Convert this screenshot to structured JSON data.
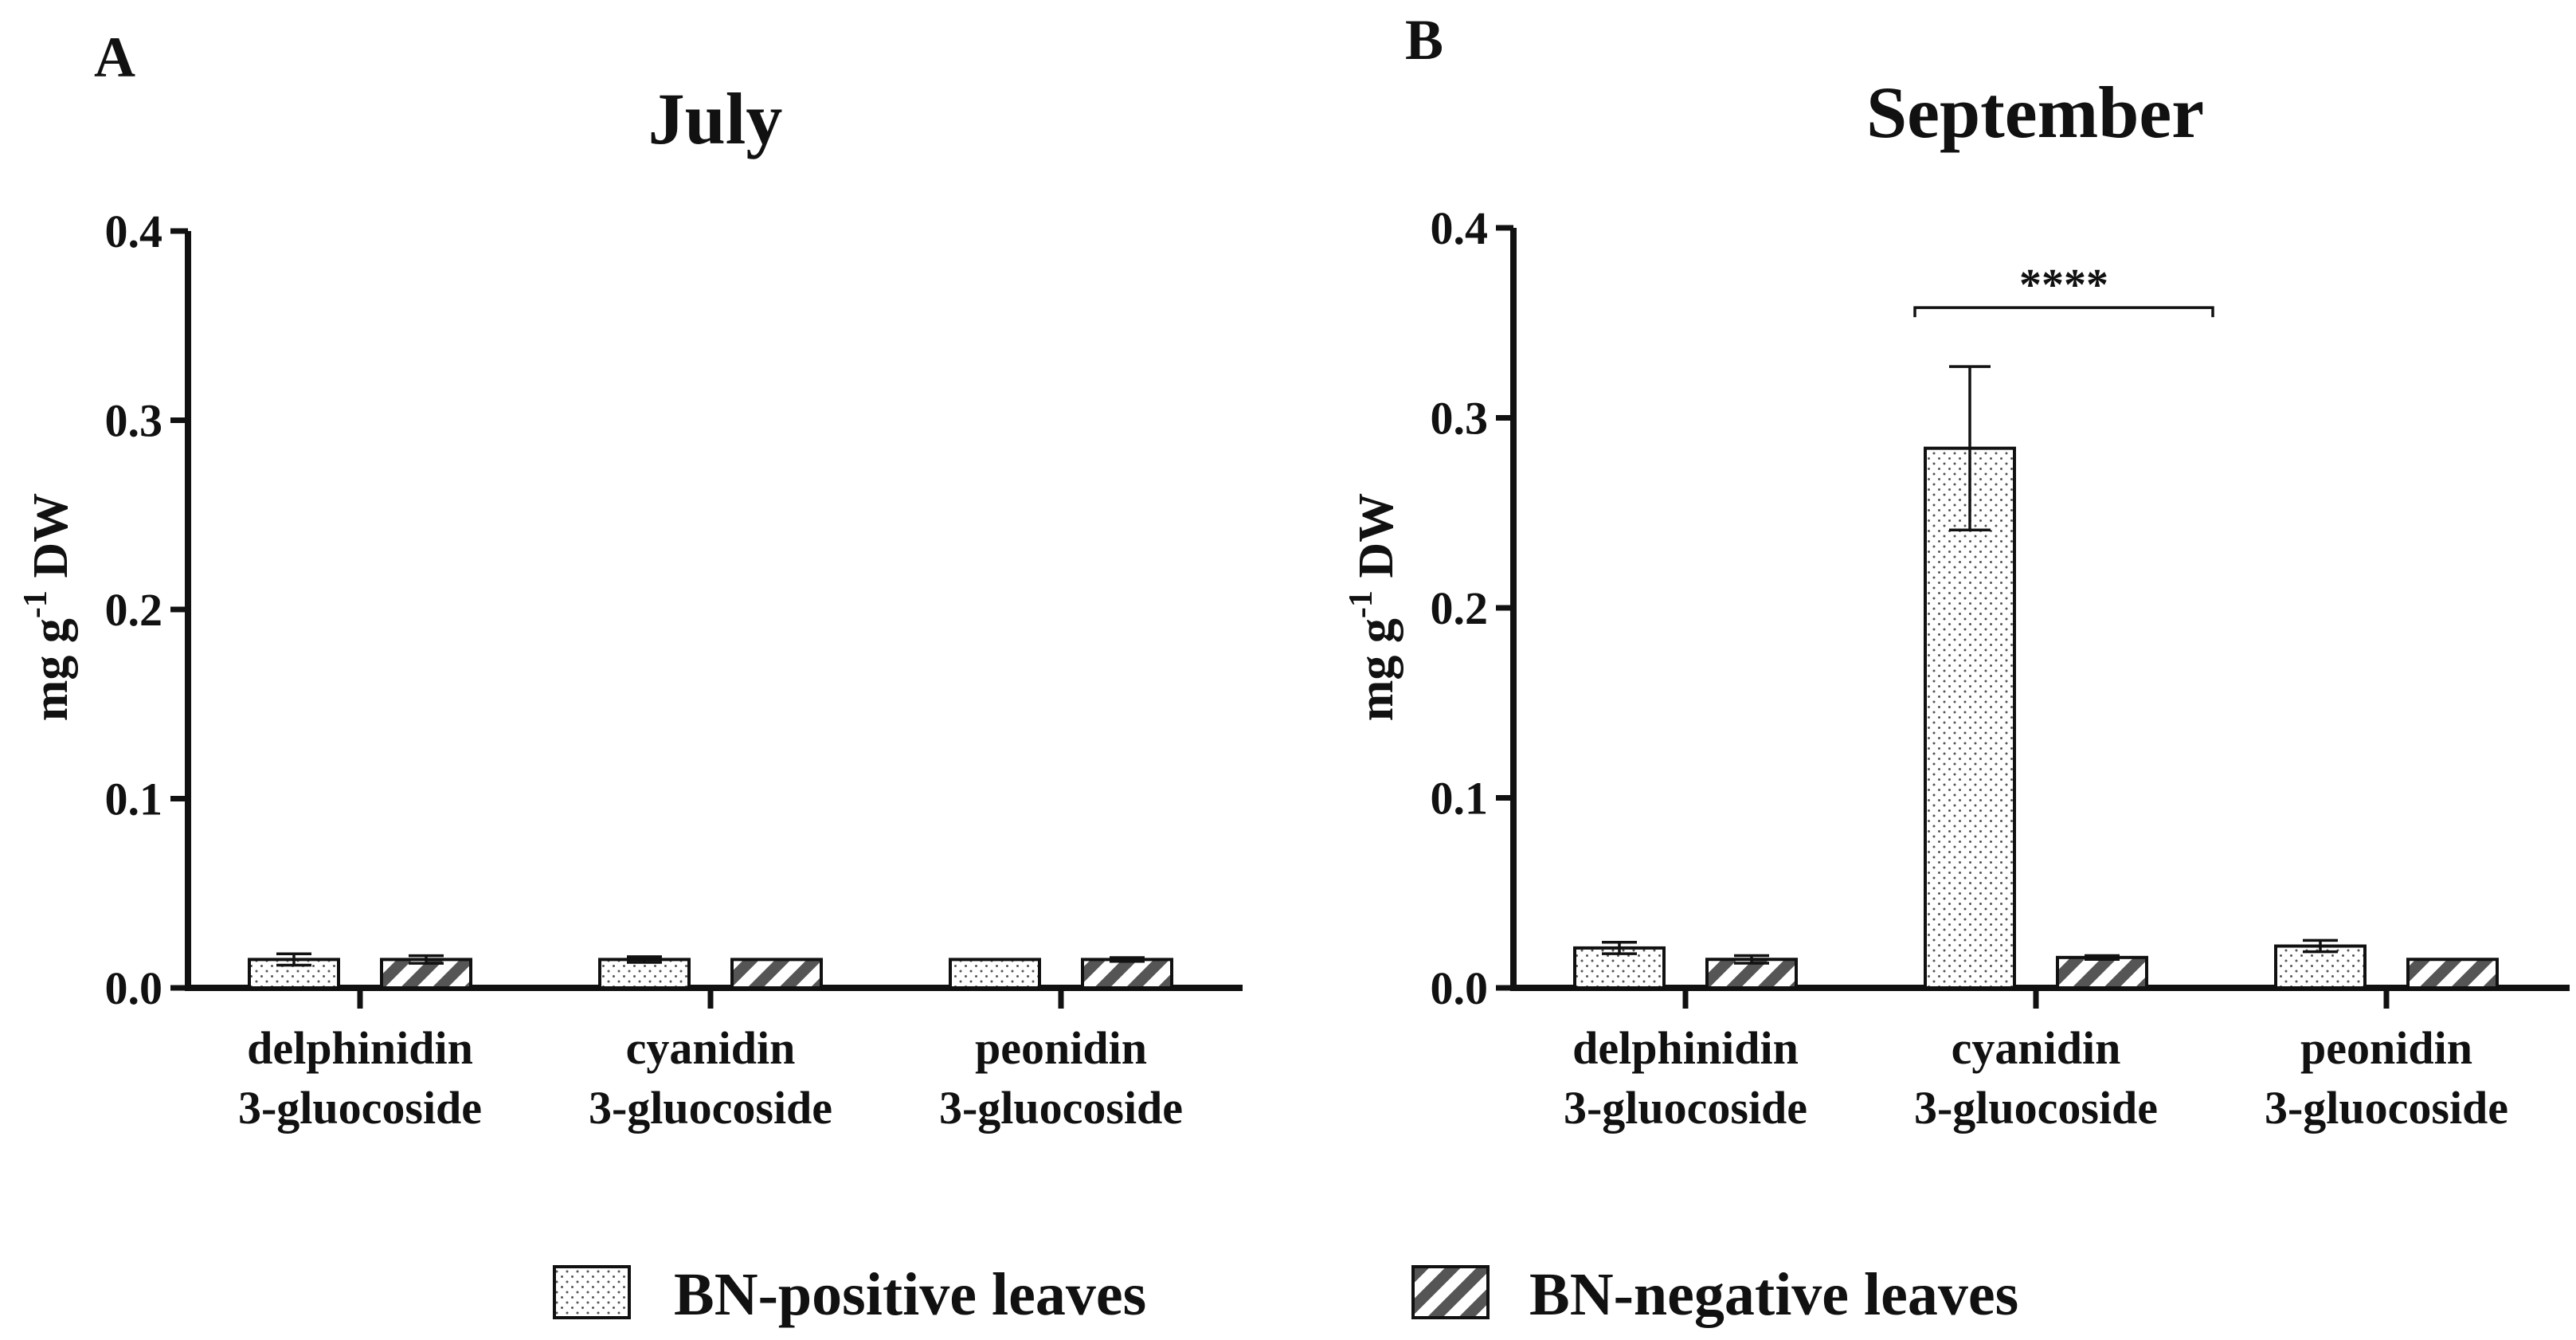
{
  "legend": {
    "items": [
      {
        "label": "BN-positive leaves",
        "pattern": "dots"
      },
      {
        "label": "BN-negative leaves",
        "pattern": "stripes"
      }
    ]
  },
  "colors": {
    "ink": "#111111",
    "background": "#ffffff",
    "stripe": "#555555",
    "dot": "#555555"
  },
  "chart_data": [
    {
      "type": "bar",
      "panel": "A",
      "title": "July",
      "ylabel_main": "mg g",
      "ylabel_sup": "-1",
      "ylabel_tail": " DW",
      "xlabel": "",
      "ylim": [
        0,
        0.4
      ],
      "yticks": [
        "0.0",
        "0.1",
        "0.2",
        "0.3",
        "0.4"
      ],
      "yticks_values": [
        0,
        0.1,
        0.2,
        0.3,
        0.4
      ],
      "categories": [
        {
          "line1": "delphinidin",
          "line2": "3-gluocoside"
        },
        {
          "line1": "cyanidin",
          "line2": "3-gluocoside"
        },
        {
          "line1": "peonidin",
          "line2": "3-gluocoside"
        }
      ],
      "series": [
        {
          "name": "BN-positive leaves",
          "values": [
            0.015,
            0.015,
            0.015
          ],
          "errors": [
            0.003,
            0.0015,
            0
          ]
        },
        {
          "name": "BN-negative leaves",
          "values": [
            0.015,
            0.015,
            0.015
          ],
          "errors": [
            0.002,
            0,
            0.001
          ]
        }
      ],
      "annotations": []
    },
    {
      "type": "bar",
      "panel": "B",
      "title": "September",
      "ylabel_main": "mg g",
      "ylabel_sup": "-1",
      "ylabel_tail": " DW",
      "xlabel": "",
      "ylim": [
        0,
        0.4
      ],
      "yticks": [
        "0.0",
        "0.1",
        "0.2",
        "0.3",
        "0.4"
      ],
      "yticks_values": [
        0,
        0.1,
        0.2,
        0.3,
        0.4
      ],
      "categories": [
        {
          "line1": "delphinidin",
          "line2": "3-gluocoside"
        },
        {
          "line1": "cyanidin",
          "line2": "3-gluocoside"
        },
        {
          "line1": "peonidin",
          "line2": "3-gluocoside"
        }
      ],
      "series": [
        {
          "name": "BN-positive leaves",
          "values": [
            0.021,
            0.284,
            0.022
          ],
          "errors": [
            0.003,
            0.043,
            0.003
          ]
        },
        {
          "name": "BN-negative leaves",
          "values": [
            0.015,
            0.016,
            0.015
          ],
          "errors": [
            0.002,
            0.001,
            0
          ]
        }
      ],
      "annotations": [
        {
          "text": "****",
          "category_index": 1,
          "y": 0.358
        }
      ]
    }
  ]
}
